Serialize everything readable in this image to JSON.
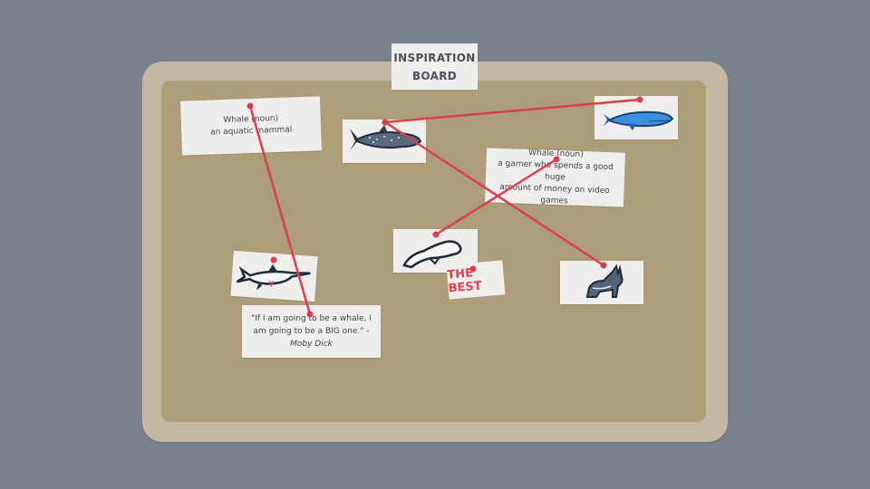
{
  "board": {
    "title_line1": "INSPIRATION",
    "title_line2": "BOARD"
  },
  "cards": {
    "def_animal": {
      "line1": "Whale (noun)",
      "line2": "an aquatic mammal"
    },
    "def_gamer": {
      "line1": "Whale (noun)",
      "line2": "a gamer who spends a good huge",
      "line3": "amount of money on video games"
    },
    "quote": {
      "text": "\"If I am going to be a whale, I am going to be a BIG one.\" - ",
      "author": "Moby Dick"
    },
    "best_label": "THE BEST"
  },
  "pictures": [
    {
      "icon": "whale-shark-icon"
    },
    {
      "icon": "blue-whale-icon"
    },
    {
      "icon": "beluga-whale-icon"
    },
    {
      "icon": "sawfish-shark-icon"
    },
    {
      "icon": "wolf-icon"
    }
  ],
  "colors": {
    "string": "#d9404f",
    "card": "#efeeec",
    "cork": "#ad9e79",
    "frame": "#c2b8a3",
    "background": "#7a818c"
  }
}
